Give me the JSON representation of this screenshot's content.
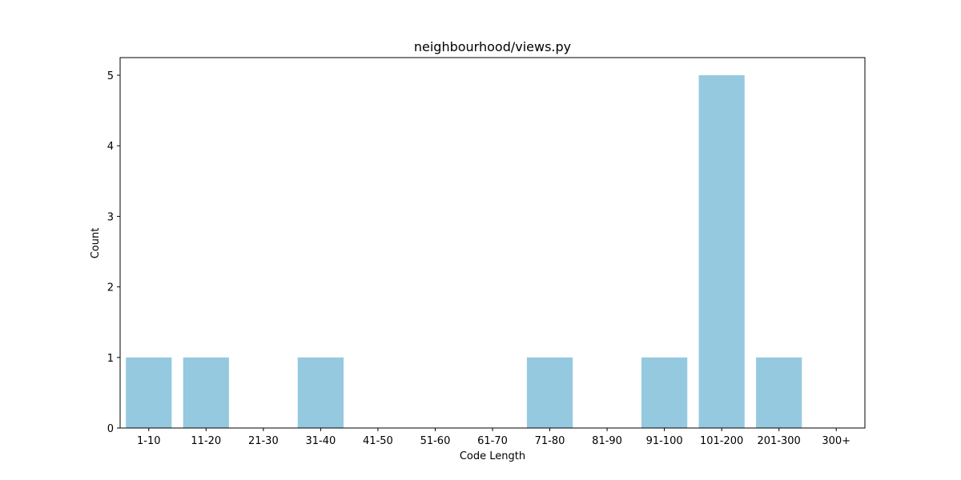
{
  "chart_data": {
    "type": "bar",
    "title": "neighbourhood/views.py",
    "xlabel": "Code Length",
    "ylabel": "Count",
    "categories": [
      "1-10",
      "11-20",
      "21-30",
      "31-40",
      "41-50",
      "51-60",
      "61-70",
      "71-80",
      "81-90",
      "91-100",
      "101-200",
      "201-300",
      "300+"
    ],
    "values": [
      1,
      1,
      0,
      1,
      0,
      0,
      0,
      1,
      0,
      1,
      5,
      1,
      0
    ],
    "yticks": [
      0,
      1,
      2,
      3,
      4,
      5
    ],
    "ylim": [
      0,
      5.25
    ],
    "grid": false,
    "bar_color": "#95c9df"
  }
}
